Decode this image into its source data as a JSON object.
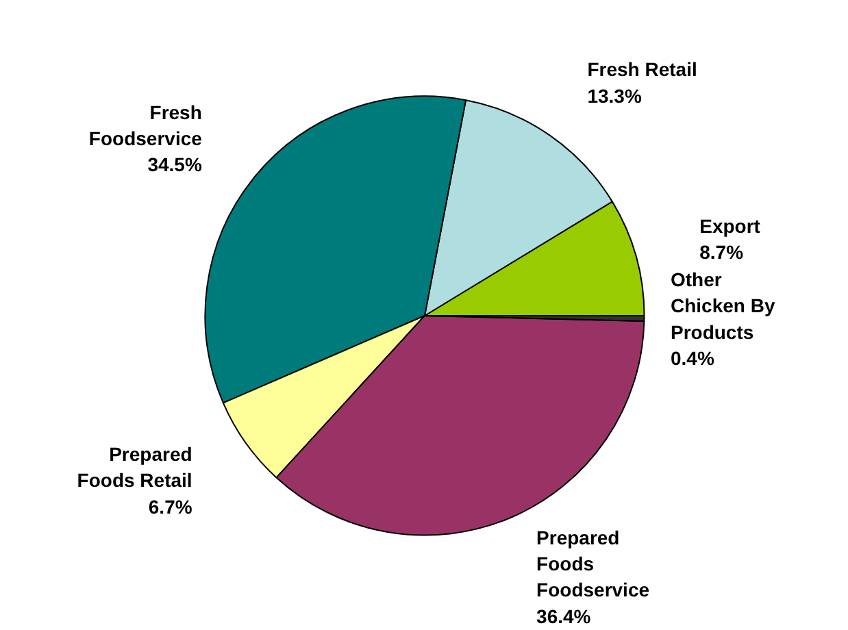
{
  "chart_data": {
    "type": "pie",
    "categories": [
      "Export",
      "Fresh Retail",
      "Fresh Foodservice",
      "Prepared Foods Retail",
      "Prepared Foods Foodservice",
      "Other Chicken By Products"
    ],
    "values": [
      8.7,
      13.3,
      34.5,
      6.7,
      36.4,
      0.4
    ],
    "colors": [
      "#99cc00",
      "#b0dde0",
      "#007b7b",
      "#ffff99",
      "#993366",
      "#333333"
    ],
    "value_labels": [
      "8.7%",
      "13.3%",
      "34.5%",
      "6.7%",
      "36.4%",
      "0.4%"
    ]
  }
}
